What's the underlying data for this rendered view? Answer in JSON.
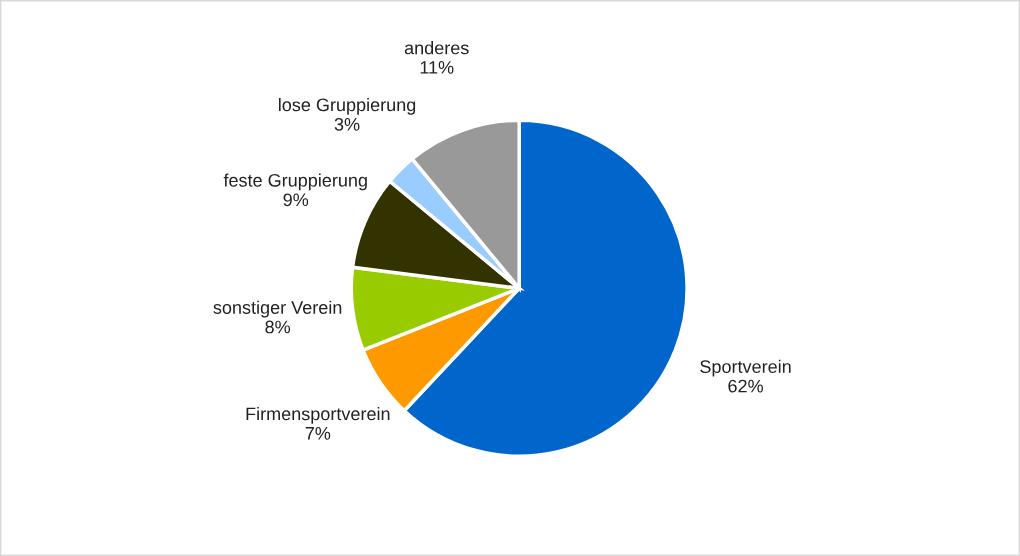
{
  "chart_data": {
    "type": "pie",
    "categories": [
      "Sportverein",
      "Firmensportverein",
      "sonstiger Verein",
      "feste Gruppierung",
      "lose Gruppierung",
      "anderes"
    ],
    "values": [
      62,
      7,
      8,
      9,
      3,
      11
    ],
    "value_labels": [
      "62%",
      "7%",
      "8%",
      "9%",
      "3%",
      "11%"
    ],
    "colors": [
      "#0066cc",
      "#ff9900",
      "#99cc00",
      "#333300",
      "#99ccff",
      "#999999"
    ],
    "legend": false
  }
}
